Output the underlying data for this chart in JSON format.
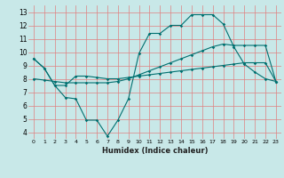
{
  "xlabel": "Humidex (Indice chaleur)",
  "background_color": "#c8e8e8",
  "grid_color": "#e08080",
  "line_color": "#007070",
  "xlim": [
    -0.5,
    23.5
  ],
  "ylim": [
    3.5,
    13.5
  ],
  "xticks": [
    0,
    1,
    2,
    3,
    4,
    5,
    6,
    7,
    8,
    9,
    10,
    11,
    12,
    13,
    14,
    15,
    16,
    17,
    18,
    19,
    20,
    21,
    22,
    23
  ],
  "yticks": [
    4,
    5,
    6,
    7,
    8,
    9,
    10,
    11,
    12,
    13
  ],
  "jagged_y": [
    9.5,
    8.8,
    7.5,
    6.6,
    6.5,
    4.9,
    4.9,
    3.7,
    4.9,
    6.5,
    9.9,
    11.4,
    11.4,
    12.0,
    12.0,
    12.8,
    12.8,
    12.8,
    12.1,
    10.4,
    9.1,
    8.5,
    8.0,
    7.8
  ],
  "diag_y": [
    8.0,
    7.9,
    7.8,
    7.7,
    7.7,
    7.7,
    7.7,
    7.7,
    7.8,
    8.0,
    8.3,
    8.6,
    8.9,
    9.2,
    9.5,
    9.8,
    10.1,
    10.4,
    10.6,
    10.5,
    10.5,
    10.5,
    10.5,
    7.8
  ],
  "third_y": [
    9.5,
    8.8,
    7.5,
    7.5,
    8.2,
    8.2,
    8.1,
    8.0,
    8.0,
    8.1,
    8.2,
    8.3,
    8.4,
    8.5,
    8.6,
    8.7,
    8.8,
    8.9,
    9.0,
    9.1,
    9.2,
    9.2,
    9.2,
    7.8
  ],
  "fig_width": 3.2,
  "fig_height": 2.0,
  "dpi": 100
}
